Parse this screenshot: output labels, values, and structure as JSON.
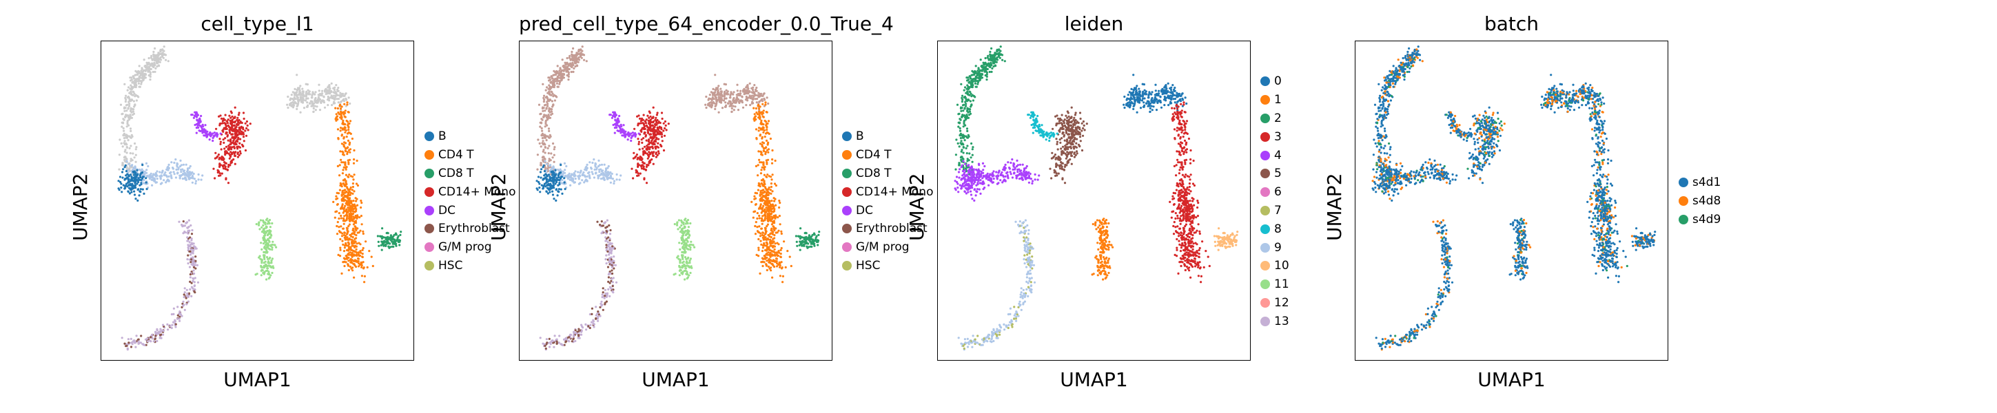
{
  "chart_data": [
    {
      "type": "scatter",
      "title": "cell_type_l1",
      "xlabel": "UMAP1",
      "ylabel": "UMAP2",
      "legend_position": "right",
      "grid": false,
      "legend": [
        {
          "name": "B",
          "color": "#1f77b4"
        },
        {
          "name": "CD4 T",
          "color": "#ff7f0e"
        },
        {
          "name": "CD8 T",
          "color": "#279e68"
        },
        {
          "name": "CD14+ Mono",
          "color": "#d62728"
        },
        {
          "name": "DC",
          "color": "#aa40fc"
        },
        {
          "name": "Erythroblast",
          "color": "#8c564b"
        },
        {
          "name": "G/M prog",
          "color": "#e377c2"
        },
        {
          "name": "HSC",
          "color": "#b5bd61"
        }
      ]
    },
    {
      "type": "scatter",
      "title": "pred_cell_type_64_encoder_0.0_True_4",
      "xlabel": "UMAP1",
      "ylabel": "UMAP2",
      "legend_position": "right",
      "grid": false,
      "legend": [
        {
          "name": "B",
          "color": "#1f77b4"
        },
        {
          "name": "CD4 T",
          "color": "#ff7f0e"
        },
        {
          "name": "CD8 T",
          "color": "#279e68"
        },
        {
          "name": "CD14+ Mono",
          "color": "#d62728"
        },
        {
          "name": "DC",
          "color": "#aa40fc"
        },
        {
          "name": "Erythroblast",
          "color": "#8c564b"
        },
        {
          "name": "G/M prog",
          "color": "#e377c2"
        },
        {
          "name": "HSC",
          "color": "#b5bd61"
        }
      ]
    },
    {
      "type": "scatter",
      "title": "leiden",
      "xlabel": "UMAP1",
      "ylabel": "UMAP2",
      "legend_position": "right",
      "grid": false,
      "legend": [
        {
          "name": "0",
          "color": "#1f77b4"
        },
        {
          "name": "1",
          "color": "#ff7f0e"
        },
        {
          "name": "2",
          "color": "#279e68"
        },
        {
          "name": "3",
          "color": "#d62728"
        },
        {
          "name": "4",
          "color": "#aa40fc"
        },
        {
          "name": "5",
          "color": "#8c564b"
        },
        {
          "name": "6",
          "color": "#e377c2"
        },
        {
          "name": "7",
          "color": "#b5bd61"
        },
        {
          "name": "8",
          "color": "#17becf"
        },
        {
          "name": "9",
          "color": "#aec7e8"
        },
        {
          "name": "10",
          "color": "#ffbb78"
        },
        {
          "name": "11",
          "color": "#98df8a"
        },
        {
          "name": "12",
          "color": "#ff9896"
        },
        {
          "name": "13",
          "color": "#c5b0d5"
        }
      ]
    },
    {
      "type": "scatter",
      "title": "batch",
      "xlabel": "UMAP1",
      "ylabel": "UMAP2",
      "legend_position": "right",
      "grid": false,
      "legend": [
        {
          "name": "s4d1",
          "color": "#1f77b4"
        },
        {
          "name": "s4d8",
          "color": "#ff7f0e"
        },
        {
          "name": "s4d9",
          "color": "#279e68"
        }
      ]
    }
  ]
}
